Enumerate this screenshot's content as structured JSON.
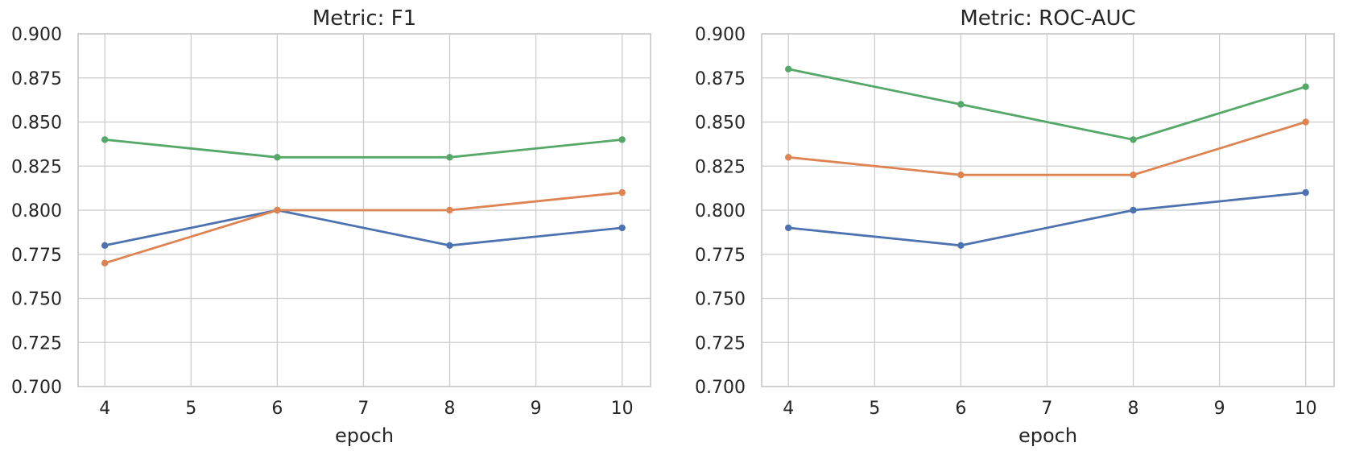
{
  "figure": {
    "background": "#ffffff",
    "style": {
      "grid_color": "#cccccc",
      "spine_color": "#cccccc",
      "text_color": "#262626",
      "plot_background": "#ffffff"
    }
  },
  "chart_data": [
    {
      "type": "line",
      "title": "Metric: F1",
      "xlabel": "epoch",
      "ylabel": "",
      "x": [
        4,
        6,
        8,
        10
      ],
      "xticks": [
        "4",
        "5",
        "6",
        "7",
        "8",
        "9",
        "10"
      ],
      "yticks": [
        "0.900",
        "0.875",
        "0.850",
        "0.825",
        "0.800",
        "0.775",
        "0.750",
        "0.725",
        "0.700"
      ],
      "xlim": [
        3.69,
        10.33
      ],
      "ylim": [
        0.7,
        0.9
      ],
      "grid": true,
      "legend": "none",
      "marker": "circle",
      "series": [
        {
          "name": "series-blue",
          "color": "#4C72B0",
          "values": [
            0.78,
            0.8,
            0.78,
            0.79
          ]
        },
        {
          "name": "series-orange",
          "color": "#DD8452",
          "values": [
            0.77,
            0.8,
            0.8,
            0.81
          ]
        },
        {
          "name": "series-green",
          "color": "#55A868",
          "values": [
            0.84,
            0.83,
            0.83,
            0.84
          ]
        }
      ]
    },
    {
      "type": "line",
      "title": "Metric: ROC-AUC",
      "xlabel": "epoch",
      "ylabel": "",
      "x": [
        4,
        6,
        8,
        10
      ],
      "xticks": [
        "4",
        "5",
        "6",
        "7",
        "8",
        "9",
        "10"
      ],
      "yticks": [
        "0.900",
        "0.875",
        "0.850",
        "0.825",
        "0.800",
        "0.775",
        "0.750",
        "0.725",
        "0.700"
      ],
      "xlim": [
        3.69,
        10.33
      ],
      "ylim": [
        0.7,
        0.9
      ],
      "grid": true,
      "legend": "none",
      "marker": "circle",
      "series": [
        {
          "name": "series-blue",
          "color": "#4C72B0",
          "values": [
            0.79,
            0.78,
            0.8,
            0.81
          ]
        },
        {
          "name": "series-orange",
          "color": "#DD8452",
          "values": [
            0.83,
            0.82,
            0.82,
            0.85
          ]
        },
        {
          "name": "series-green",
          "color": "#55A868",
          "values": [
            0.88,
            0.86,
            0.84,
            0.87
          ]
        }
      ]
    }
  ]
}
